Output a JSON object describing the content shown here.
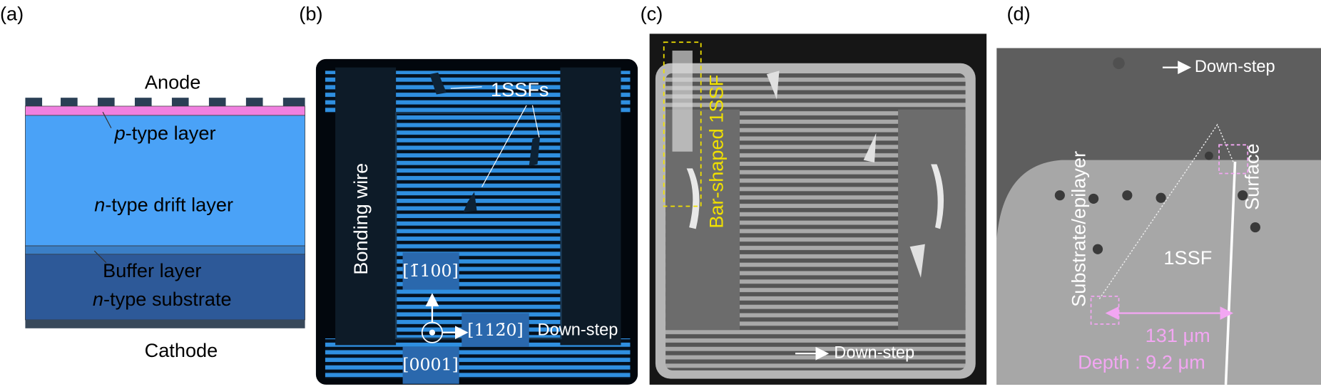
{
  "panel_a": {
    "label": "(a)",
    "anode": "Anode",
    "p_layer": {
      "italic": "p",
      "text": "-type layer"
    },
    "drift_layer": {
      "italic": "n",
      "text": "-type drift layer"
    },
    "buffer_layer": "Buffer layer",
    "substrate": {
      "italic": "n",
      "text": "-type substrate"
    },
    "cathode": "Cathode"
  },
  "panel_b": {
    "label": "(b)",
    "ssfs": "1SSFs",
    "bonding_wire": "Bonding wire",
    "dir_up": "[1̄100]",
    "dir_right": "[112̄0]",
    "dir_out": "[0001]",
    "down_step": "Down-step"
  },
  "panel_c": {
    "label": "(c)",
    "bar_ssf": "Bar-shaped 1SSF",
    "down_step": "Down-step"
  },
  "panel_d": {
    "label": "(d)",
    "down_step": "Down-step",
    "interface": "Substrate/epilayer",
    "surface": "Surface",
    "ssf": "1SSF",
    "width": "131 μm",
    "depth": "Depth : 9.2 μm"
  }
}
